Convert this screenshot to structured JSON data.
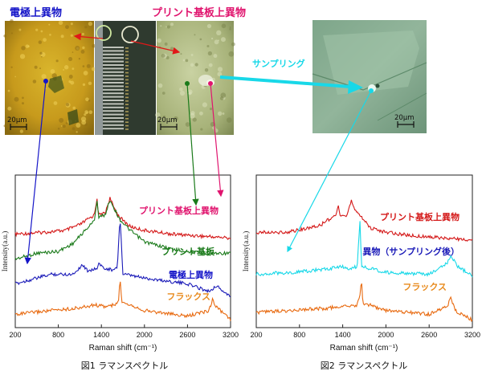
{
  "photos": {
    "electrode_title": "電極上異物",
    "pcb_title": "プリント基板上異物",
    "sampling_label": "サンプリング",
    "scale_labels": [
      "20μm",
      "20μm",
      "20μm"
    ],
    "colors": {
      "electrode_title": "#1515c8",
      "pcb_title": "#e0146e",
      "sampling": "#18d8e8"
    }
  },
  "captions": [
    "図1 ラマンスペクトル",
    "図2 ラマンスペクトル"
  ],
  "chart_data": [
    {
      "type": "line",
      "xlabel": "Raman shift (cm⁻¹)",
      "ylabel": "Intensity(a.u.)",
      "xlim": [
        200,
        3200
      ],
      "x_ticks": [
        200,
        800,
        1400,
        2000,
        2600,
        3200
      ],
      "grid": false,
      "series": [
        {
          "name": "プリント基板上異物",
          "color": "#d41818",
          "label_color": "#e0146e",
          "points": [
            [
              200,
              0.81
            ],
            [
              600,
              0.8
            ],
            [
              900,
              0.79
            ],
            [
              1100,
              0.76
            ],
            [
              1300,
              0.71
            ],
            [
              1340,
              0.62
            ],
            [
              1360,
              0.71
            ],
            [
              1450,
              0.7
            ],
            [
              1520,
              0.62
            ],
            [
              1560,
              0.66
            ],
            [
              1650,
              0.72
            ],
            [
              1800,
              0.77
            ],
            [
              2000,
              0.79
            ],
            [
              2400,
              0.81
            ],
            [
              2800,
              0.82
            ],
            [
              3200,
              0.83
            ]
          ]
        },
        {
          "name": "プリント基板",
          "color": "#1a7a1a",
          "label_color": "#1a7a1a",
          "points": [
            [
              200,
              0.94
            ],
            [
              500,
              0.91
            ],
            [
              800,
              0.9
            ],
            [
              1000,
              0.86
            ],
            [
              1200,
              0.78
            ],
            [
              1300,
              0.74
            ],
            [
              1340,
              0.63
            ],
            [
              1360,
              0.72
            ],
            [
              1450,
              0.71
            ],
            [
              1520,
              0.63
            ],
            [
              1560,
              0.66
            ],
            [
              1650,
              0.73
            ],
            [
              1800,
              0.79
            ],
            [
              2000,
              0.85
            ],
            [
              2400,
              0.89
            ],
            [
              2800,
              0.91
            ],
            [
              3200,
              0.91
            ]
          ]
        },
        {
          "name": "電極上異物",
          "color": "#1a1ab8",
          "label_color": "#1515c8",
          "points": [
            [
              200,
              1.07
            ],
            [
              700,
              1.02
            ],
            [
              1000,
              1.02
            ],
            [
              1140,
              0.97
            ],
            [
              1200,
              1.0
            ],
            [
              1350,
              0.99
            ],
            [
              1370,
              0.95
            ],
            [
              1400,
              0.98
            ],
            [
              1560,
              1.0
            ],
            [
              1620,
              0.99
            ],
            [
              1660,
              0.72
            ],
            [
              1700,
              1.02
            ],
            [
              2000,
              1.04
            ],
            [
              2600,
              1.07
            ],
            [
              2900,
              1.11
            ],
            [
              3000,
              1.08
            ],
            [
              3200,
              1.14
            ]
          ]
        },
        {
          "name": "フラックス",
          "color": "#e86a10",
          "label_color": "#e88a1c",
          "points": [
            [
              200,
              1.23
            ],
            [
              700,
              1.21
            ],
            [
              1000,
              1.2
            ],
            [
              1200,
              1.19
            ],
            [
              1300,
              1.18
            ],
            [
              1450,
              1.19
            ],
            [
              1600,
              1.18
            ],
            [
              1640,
              1.16
            ],
            [
              1660,
              1.03
            ],
            [
              1680,
              1.16
            ],
            [
              2000,
              1.21
            ],
            [
              2600,
              1.24
            ],
            [
              2900,
              1.21
            ],
            [
              2950,
              1.15
            ],
            [
              3000,
              1.19
            ],
            [
              3200,
              1.26
            ]
          ]
        }
      ]
    },
    {
      "type": "line",
      "xlabel": "Raman shift (cm⁻¹)",
      "ylabel": "Intensity(a.u.)",
      "xlim": [
        200,
        3200
      ],
      "x_ticks": [
        200,
        800,
        1400,
        2000,
        2600,
        3200
      ],
      "grid": false,
      "series": [
        {
          "name": "プリント基板上異物",
          "color": "#d41818",
          "label_color": "#d41818",
          "points": [
            [
              200,
              0.8
            ],
            [
              600,
              0.8
            ],
            [
              900,
              0.78
            ],
            [
              1100,
              0.76
            ],
            [
              1300,
              0.71
            ],
            [
              1340,
              0.66
            ],
            [
              1360,
              0.72
            ],
            [
              1450,
              0.72
            ],
            [
              1520,
              0.63
            ],
            [
              1560,
              0.67
            ],
            [
              1650,
              0.72
            ],
            [
              1800,
              0.78
            ],
            [
              2000,
              0.8
            ],
            [
              2400,
              0.82
            ],
            [
              2800,
              0.83
            ],
            [
              3200,
              0.84
            ]
          ]
        },
        {
          "name": "異物（サンプリング後）",
          "color": "#18d8e8",
          "label_color": "#1a1ab8",
          "points": [
            [
              200,
              1.02
            ],
            [
              700,
              1.01
            ],
            [
              1000,
              1.0
            ],
            [
              1200,
              0.99
            ],
            [
              1400,
              0.98
            ],
            [
              1500,
              0.99
            ],
            [
              1600,
              0.98
            ],
            [
              1640,
              0.74
            ],
            [
              1660,
              0.98
            ],
            [
              2000,
              1.01
            ],
            [
              2600,
              1.02
            ],
            [
              2850,
              0.96
            ],
            [
              2900,
              0.92
            ],
            [
              3000,
              0.98
            ],
            [
              3200,
              1.03
            ]
          ]
        },
        {
          "name": "フラックス",
          "color": "#e86a10",
          "label_color": "#e88a1c",
          "points": [
            [
              200,
              1.22
            ],
            [
              700,
              1.21
            ],
            [
              1000,
              1.2
            ],
            [
              1200,
              1.2
            ],
            [
              1300,
              1.19
            ],
            [
              1450,
              1.19
            ],
            [
              1600,
              1.18
            ],
            [
              1640,
              1.13
            ],
            [
              1660,
              1.05
            ],
            [
              1680,
              1.17
            ],
            [
              2000,
              1.21
            ],
            [
              2600,
              1.23
            ],
            [
              2850,
              1.19
            ],
            [
              2900,
              1.14
            ],
            [
              2960,
              1.21
            ],
            [
              3200,
              1.26
            ]
          ]
        }
      ]
    }
  ]
}
